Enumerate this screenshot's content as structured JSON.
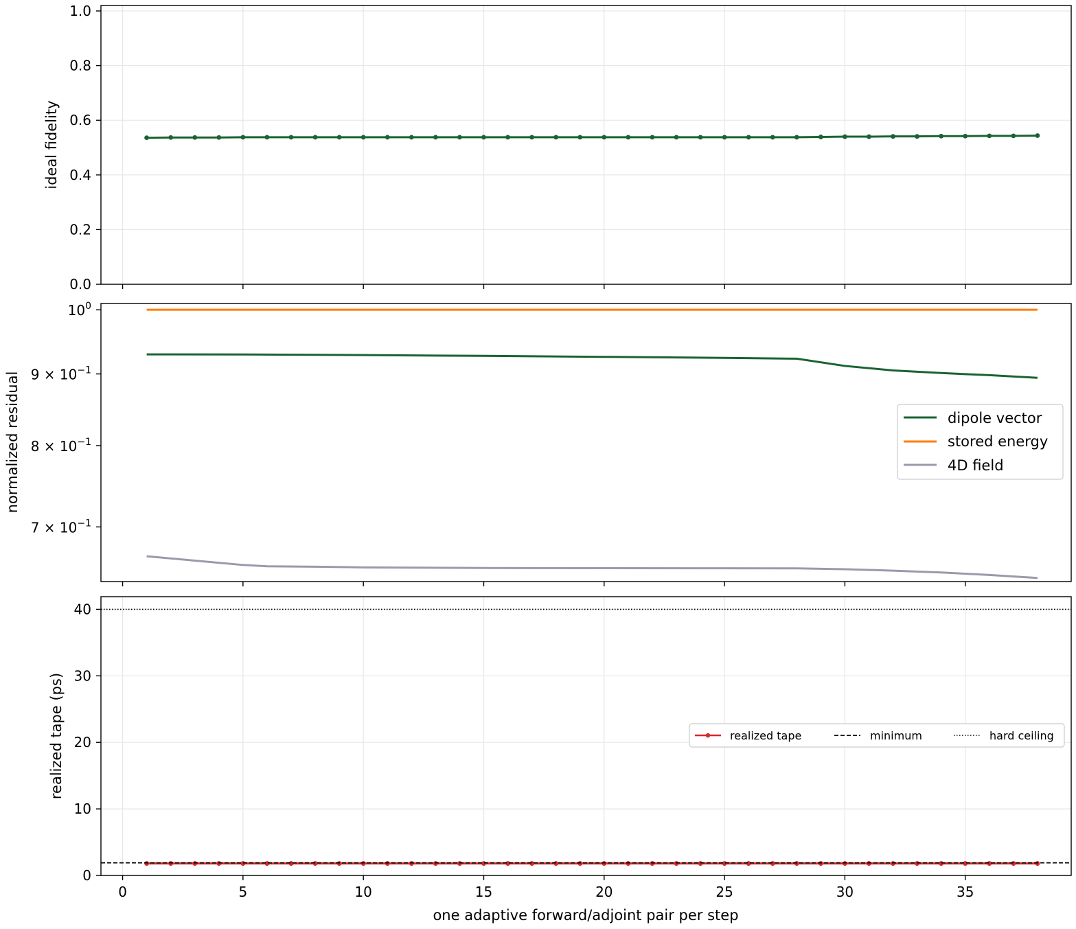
{
  "chart_data": [
    {
      "type": "line",
      "panel": "top",
      "xlabel": "",
      "ylabel": "ideal fidelity",
      "xlim": [
        -0.9,
        39.4
      ],
      "ylim": [
        0.0,
        1.02
      ],
      "yticks": [
        0.0,
        0.2,
        0.4,
        0.6,
        0.8,
        1.0
      ],
      "ytick_labels": [
        "0.0",
        "0.2",
        "0.4",
        "0.6",
        "0.8",
        "1.0"
      ],
      "xticks": [
        0,
        5,
        10,
        15,
        20,
        25,
        30,
        35
      ],
      "grid": true,
      "series": [
        {
          "color": "#1a6332",
          "marker": "circle",
          "x": [
            1,
            2,
            3,
            4,
            5,
            6,
            7,
            8,
            9,
            10,
            11,
            12,
            13,
            14,
            15,
            16,
            17,
            18,
            19,
            20,
            21,
            22,
            23,
            24,
            25,
            26,
            27,
            28,
            29,
            30,
            31,
            32,
            33,
            34,
            35,
            36,
            37,
            38
          ],
          "values": [
            0.536,
            0.537,
            0.537,
            0.537,
            0.538,
            0.538,
            0.538,
            0.538,
            0.538,
            0.538,
            0.538,
            0.538,
            0.538,
            0.538,
            0.538,
            0.538,
            0.538,
            0.538,
            0.538,
            0.538,
            0.538,
            0.538,
            0.538,
            0.538,
            0.538,
            0.538,
            0.538,
            0.538,
            0.539,
            0.54,
            0.54,
            0.541,
            0.541,
            0.542,
            0.542,
            0.543,
            0.543,
            0.544
          ]
        }
      ]
    },
    {
      "type": "line",
      "panel": "middle",
      "xlabel": "",
      "ylabel": "normalized residual",
      "yscale": "log",
      "xlim": [
        -0.9,
        39.4
      ],
      "ylim": [
        0.6399,
        1.0104
      ],
      "yticks": [
        0.7,
        0.8,
        0.9,
        1.0
      ],
      "ytick_labels": [
        {
          "mant": "7 × 10",
          "exp": "−1"
        },
        {
          "mant": "8 × 10",
          "exp": "−1"
        },
        {
          "mant": "9 × 10",
          "exp": "−1"
        },
        {
          "mant": "10",
          "exp": "0"
        }
      ],
      "xticks": [
        0,
        5,
        10,
        15,
        20,
        25,
        30,
        35
      ],
      "grid": false,
      "legend_position": "center-right",
      "series": [
        {
          "name": "dipole vector",
          "color": "#1a6332",
          "x": [
            1,
            5,
            10,
            15,
            20,
            25,
            28,
            30,
            32,
            34,
            36,
            38
          ],
          "values": [
            0.9294,
            0.9292,
            0.9283,
            0.9271,
            0.9256,
            0.924,
            0.9228,
            0.9119,
            0.9052,
            0.9013,
            0.8982,
            0.8943
          ]
        },
        {
          "name": "stored energy",
          "color": "#ff7f0e",
          "x": [
            1,
            38
          ],
          "values": [
            1.0,
            1.0
          ]
        },
        {
          "name": "4D field",
          "color": "#9a9aab",
          "x": [
            1,
            3,
            5,
            6,
            8,
            10,
            15,
            20,
            25,
            28,
            30,
            32,
            34,
            36,
            38
          ],
          "values": [
            0.6671,
            0.6623,
            0.6576,
            0.6562,
            0.6557,
            0.655,
            0.6543,
            0.6541,
            0.654,
            0.6539,
            0.653,
            0.6515,
            0.6495,
            0.6469,
            0.6437
          ]
        }
      ]
    },
    {
      "type": "line",
      "panel": "bottom",
      "xlabel": "one adaptive forward/adjoint pair per step",
      "ylabel": "realized tape (ps)",
      "xlim": [
        -0.9,
        39.4
      ],
      "ylim": [
        0.0,
        41.9
      ],
      "yticks": [
        0,
        10,
        20,
        30,
        40
      ],
      "ytick_labels": [
        "0",
        "10",
        "20",
        "30",
        "40"
      ],
      "xticks": [
        0,
        5,
        10,
        15,
        20,
        25,
        30,
        35
      ],
      "xtick_labels": [
        "0",
        "5",
        "10",
        "15",
        "20",
        "25",
        "30",
        "35"
      ],
      "grid": true,
      "legend_position": "center-right",
      "series": [
        {
          "name": "realized tape",
          "color": "#d62728",
          "marker": "circle",
          "x": [
            1,
            2,
            3,
            4,
            5,
            6,
            7,
            8,
            9,
            10,
            11,
            12,
            13,
            14,
            15,
            16,
            17,
            18,
            19,
            20,
            21,
            22,
            23,
            24,
            25,
            26,
            27,
            28,
            29,
            30,
            31,
            32,
            33,
            34,
            35,
            36,
            37,
            38
          ],
          "values": [
            1.8,
            1.8,
            1.8,
            1.8,
            1.8,
            1.8,
            1.8,
            1.8,
            1.8,
            1.8,
            1.8,
            1.8,
            1.8,
            1.8,
            1.8,
            1.8,
            1.8,
            1.8,
            1.8,
            1.8,
            1.8,
            1.8,
            1.8,
            1.8,
            1.8,
            1.8,
            1.8,
            1.8,
            1.8,
            1.8,
            1.8,
            1.8,
            1.8,
            1.8,
            1.8,
            1.8,
            1.8,
            1.8
          ]
        },
        {
          "name": "minimum",
          "color": "#000000",
          "linestyle": "dashed",
          "hline": 1.9
        },
        {
          "name": "hard ceiling",
          "color": "#000000",
          "linestyle": "dotted",
          "hline": 40
        }
      ]
    }
  ]
}
